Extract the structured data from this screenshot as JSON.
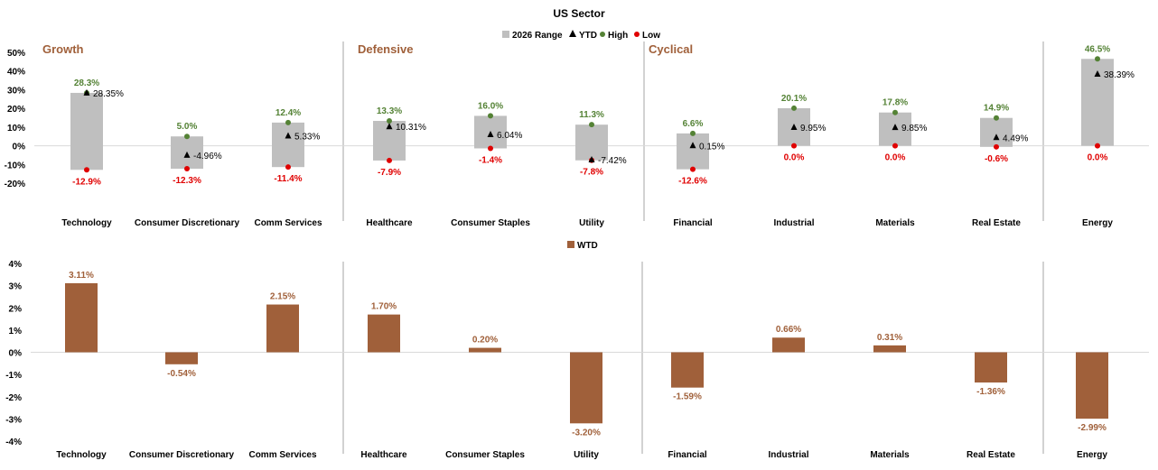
{
  "chart_data": [
    {
      "type": "bar",
      "title": "US Sector",
      "legend": [
        "2026 Range",
        "YTD",
        "High",
        "Low"
      ],
      "legend_placement": "top-center",
      "groups": [
        "Growth",
        "Defensive",
        "Cyclical"
      ],
      "categories": [
        "Technology",
        "Consumer Discretionary",
        "Comm Services",
        "Healthcare",
        "Consumer Staples",
        "Utility",
        "Financial",
        "Industrial",
        "Materials",
        "Real Estate",
        "Energy"
      ],
      "high": [
        28.3,
        5.0,
        12.4,
        13.3,
        16.0,
        11.3,
        6.6,
        20.1,
        17.8,
        14.9,
        46.5
      ],
      "low": [
        -12.9,
        -12.3,
        -11.4,
        -7.9,
        -1.4,
        -7.8,
        -12.6,
        0.0,
        0.0,
        -0.6,
        0.0
      ],
      "ytd": [
        28.35,
        -4.96,
        5.33,
        10.31,
        6.04,
        -7.42,
        0.15,
        9.95,
        9.85,
        4.49,
        38.39
      ],
      "high_labels": [
        "28.3%",
        "5.0%",
        "12.4%",
        "13.3%",
        "16.0%",
        "11.3%",
        "6.6%",
        "20.1%",
        "17.8%",
        "14.9%",
        "46.5%"
      ],
      "low_labels": [
        "-12.9%",
        "-12.3%",
        "-11.4%",
        "-7.9%",
        "-1.4%",
        "-7.8%",
        "-12.6%",
        "0.0%",
        "0.0%",
        "-0.6%",
        "0.0%"
      ],
      "ytd_labels": [
        "28.35%",
        "-4.96%",
        "5.33%",
        "10.31%",
        "6.04%",
        "-7.42%",
        "0.15%",
        "9.95%",
        "9.85%",
        "4.49%",
        "38.39%"
      ],
      "yticks": [
        "50%",
        "40%",
        "30%",
        "20%",
        "10%",
        "0%",
        "-10%",
        "-20%"
      ],
      "ytick_values": [
        50,
        40,
        30,
        20,
        10,
        0,
        -10,
        -20
      ],
      "ylim": [
        -20,
        50
      ],
      "grid": false
    },
    {
      "type": "bar",
      "legend": [
        "WTD"
      ],
      "legend_placement": "top-center",
      "categories": [
        "Technology",
        "Consumer Discretionary",
        "Comm Services",
        "Healthcare",
        "Consumer Staples",
        "Utility",
        "Financial",
        "Industrial",
        "Materials",
        "Real Estate",
        "Energy"
      ],
      "values": [
        3.11,
        -0.54,
        2.15,
        1.7,
        0.2,
        -3.2,
        -1.59,
        0.66,
        0.31,
        -1.36,
        -2.99
      ],
      "value_labels": [
        "3.11%",
        "-0.54%",
        "2.15%",
        "1.70%",
        "0.20%",
        "-3.20%",
        "-1.59%",
        "0.66%",
        "0.31%",
        "-1.36%",
        "-2.99%"
      ],
      "yticks": [
        "4%",
        "3%",
        "2%",
        "1%",
        "0%",
        "-1%",
        "-2%",
        "-3%",
        "-4%"
      ],
      "ytick_values": [
        4,
        3,
        2,
        1,
        0,
        -1,
        -2,
        -3,
        -4
      ],
      "ylim": [
        -4,
        4
      ],
      "grid": false
    }
  ],
  "colors": {
    "range_bar": "#bfbfbf",
    "ytd_marker": "#000000",
    "high": "#548235",
    "low": "#e00000",
    "wtd_bar": "#a0603a",
    "group_label": "#a0603a",
    "divider": "#a6a6a6",
    "zero_line": "#d9d9d9"
  }
}
